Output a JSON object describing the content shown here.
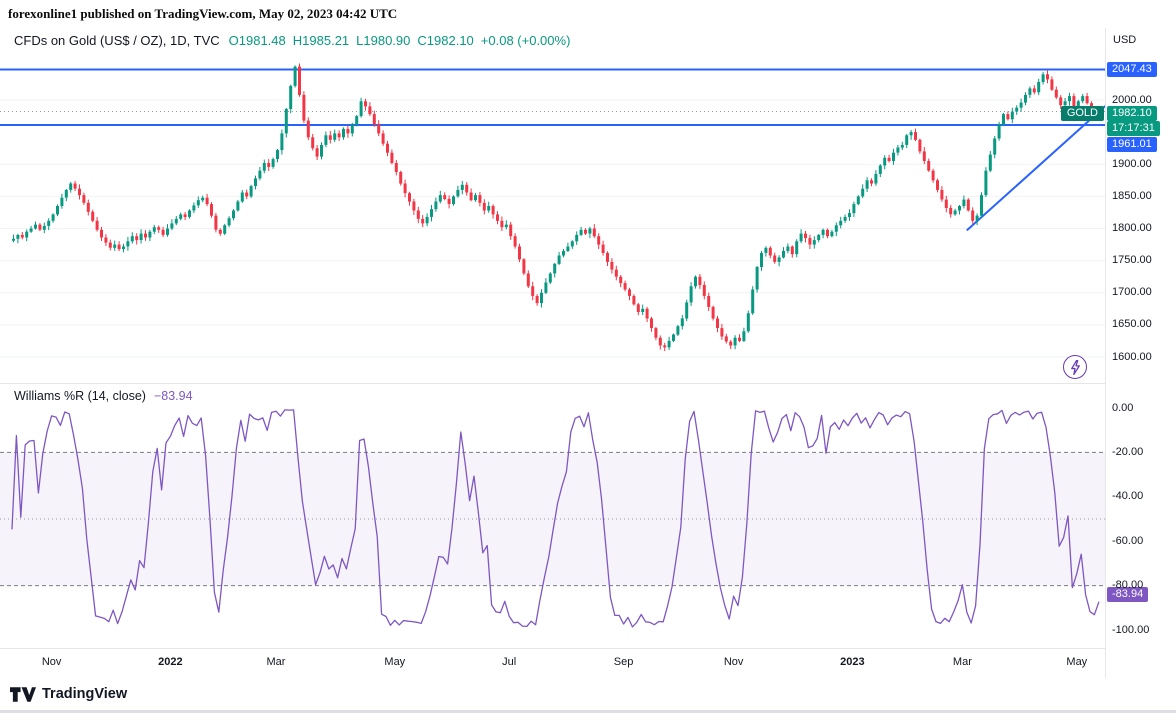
{
  "attribution": "forexonline1 published on TradingView.com, May 02, 2023 04:42 UTC",
  "colors": {
    "up": "#089981",
    "down": "#f23645",
    "level_line": "#2962ff",
    "trend_line": "#2962ff",
    "wr_line": "#7e57c2",
    "badge_blue": "#2962ff",
    "badge_teal": "#089981",
    "badge_purple": "#7e57c2",
    "text": "#131722"
  },
  "main": {
    "legend": {
      "title": "CFDs on Gold (US$ / OZ), 1D, TVC",
      "ohlc": [
        {
          "label": "O",
          "value": "1981.48"
        },
        {
          "label": "H",
          "value": "1985.21"
        },
        {
          "label": "L",
          "value": "1980.90"
        },
        {
          "label": "C",
          "value": "1982.10"
        }
      ],
      "change": "+0.08 (+0.00%)"
    },
    "price_axis": {
      "currency": "USD",
      "ticks": [
        {
          "label": "2000.00",
          "value": 2000
        },
        {
          "label": "1900.00",
          "value": 1900
        },
        {
          "label": "1850.00",
          "value": 1850
        },
        {
          "label": "1800.00",
          "value": 1800
        },
        {
          "label": "1750.00",
          "value": 1750
        },
        {
          "label": "1700.00",
          "value": 1700
        },
        {
          "label": "1650.00",
          "value": 1650
        },
        {
          "label": "1600.00",
          "value": 1600
        }
      ],
      "badges": {
        "resistance": "2047.43",
        "symbol": "GOLD",
        "last_price": "1982.10",
        "countdown": "17:17:31",
        "support": "1961.01"
      }
    }
  },
  "indicator": {
    "legend": {
      "title": "Williams %R (14, close)",
      "value": "−83.94"
    },
    "badge": "-83.94",
    "axis_ticks": [
      {
        "label": "0.00",
        "value": 0
      },
      {
        "label": "-20.00",
        "value": -20
      },
      {
        "label": "-40.00",
        "value": -40
      },
      {
        "label": "-60.00",
        "value": -60
      },
      {
        "label": "-80.00",
        "value": -80
      },
      {
        "label": "-100.00",
        "value": -100
      }
    ]
  },
  "footer": {
    "brand": "TradingView"
  },
  "chart_data": [
    {
      "type": "candlestick",
      "title": "CFDs on Gold (US$ / OZ), 1D, TVC",
      "ylim_visible": [
        1600,
        2112
      ],
      "x_axis_labels": [
        {
          "label": "Nov",
          "index": 9
        },
        {
          "label": "2022",
          "index": 36,
          "bold": true
        },
        {
          "label": "Mar",
          "index": 60
        },
        {
          "label": "May",
          "index": 87
        },
        {
          "label": "Jul",
          "index": 113
        },
        {
          "label": "Sep",
          "index": 139
        },
        {
          "label": "Nov",
          "index": 164
        },
        {
          "label": "2023",
          "index": 191,
          "bold": true
        },
        {
          "label": "Mar",
          "index": 216
        },
        {
          "label": "May",
          "index": 242
        }
      ],
      "close": [
        1784,
        1790,
        1786,
        1795,
        1800,
        1806,
        1798,
        1804,
        1812,
        1822,
        1835,
        1848,
        1860,
        1870,
        1862,
        1852,
        1840,
        1826,
        1812,
        1798,
        1786,
        1778,
        1770,
        1775,
        1768,
        1772,
        1780,
        1788,
        1782,
        1792,
        1786,
        1795,
        1802,
        1798,
        1790,
        1800,
        1808,
        1815,
        1822,
        1818,
        1828,
        1836,
        1844,
        1848,
        1838,
        1820,
        1798,
        1792,
        1805,
        1816,
        1828,
        1842,
        1856,
        1850,
        1866,
        1878,
        1890,
        1902,
        1896,
        1908,
        1922,
        1948,
        1986,
        2022,
        2052,
        2008,
        1968,
        1942,
        1925,
        1912,
        1930,
        1945,
        1938,
        1948,
        1942,
        1955,
        1948,
        1962,
        1975,
        1998,
        1990,
        1978,
        1962,
        1948,
        1932,
        1918,
        1902,
        1888,
        1870,
        1855,
        1842,
        1828,
        1815,
        1808,
        1818,
        1830,
        1842,
        1852,
        1846,
        1838,
        1850,
        1860,
        1868,
        1856,
        1844,
        1852,
        1840,
        1828,
        1835,
        1822,
        1812,
        1802,
        1806,
        1788,
        1772,
        1752,
        1730,
        1710,
        1695,
        1684,
        1700,
        1716,
        1730,
        1745,
        1758,
        1765,
        1772,
        1780,
        1790,
        1798,
        1792,
        1800,
        1788,
        1775,
        1762,
        1748,
        1736,
        1725,
        1715,
        1705,
        1695,
        1682,
        1670,
        1675,
        1660,
        1645,
        1630,
        1618,
        1615,
        1625,
        1635,
        1648,
        1660,
        1685,
        1710,
        1725,
        1712,
        1695,
        1678,
        1660,
        1645,
        1632,
        1624,
        1618,
        1630,
        1625,
        1640,
        1668,
        1705,
        1740,
        1762,
        1770,
        1758,
        1748,
        1755,
        1765,
        1772,
        1760,
        1780,
        1792,
        1785,
        1775,
        1782,
        1790,
        1798,
        1788,
        1795,
        1805,
        1812,
        1818,
        1824,
        1838,
        1850,
        1862,
        1875,
        1870,
        1885,
        1898,
        1910,
        1905,
        1918,
        1926,
        1930,
        1945,
        1950,
        1938,
        1920,
        1905,
        1890,
        1875,
        1860,
        1845,
        1832,
        1822,
        1828,
        1835,
        1845,
        1828,
        1812,
        1820,
        1852,
        1890,
        1915,
        1940,
        1962,
        1978,
        1970,
        1982,
        1988,
        1996,
        2008,
        2018,
        2012,
        2028,
        2040,
        2032,
        2016,
        2004,
        1992,
        1998,
        2006,
        1990,
        1998,
        2006,
        1995,
        1986,
        1978,
        1982
      ],
      "last_candle": {
        "open": 1981.48,
        "high": 1985.21,
        "low": 1980.9,
        "close": 1982.1
      },
      "horizontal_levels": [
        2047.43,
        1961.01
      ],
      "last_price_line": 1982.1,
      "trendline": {
        "start_index": 217,
        "start_price": 1797,
        "end_index": 250,
        "end_price": 2000
      }
    },
    {
      "type": "line",
      "title": "Williams %R (14, close)",
      "period": 14,
      "source": "close",
      "ylim": [
        0,
        -100
      ],
      "levels": {
        "upper_band": -20,
        "middle": -50,
        "lower_band": -80
      },
      "last_value": -83.94
    }
  ]
}
